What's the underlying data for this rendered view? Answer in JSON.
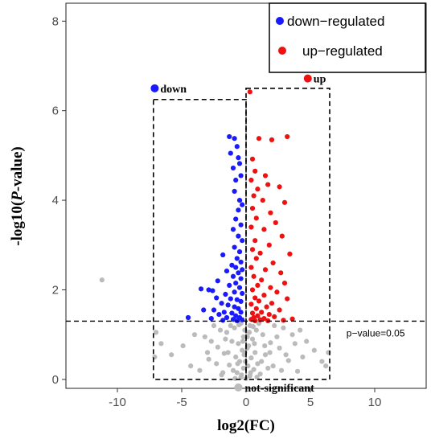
{
  "chart_data": {
    "type": "scatter",
    "title": "",
    "xlabel": "log2(FC)",
    "ylabel_prefix": "-log10(",
    "ylabel_italic": "P",
    "ylabel_suffix": "-value)",
    "xlim": [
      -14,
      14
    ],
    "ylim": [
      -0.2,
      8.4
    ],
    "x_ticks": [
      -10,
      -5,
      0,
      5,
      10
    ],
    "y_ticks": [
      0,
      2,
      4,
      6,
      8
    ],
    "grid": false,
    "legend": {
      "position": "top-right",
      "entries": [
        {
          "label": "down−regulated",
          "color": "#1a1aff"
        },
        {
          "label": "up−regulated",
          "color": "#ee1111"
        }
      ]
    },
    "threshold": {
      "y": 1.3,
      "label": "p−value=0.05"
    },
    "annotations": {
      "down": {
        "label": "down",
        "x": -7.1,
        "y": 6.5,
        "color": "#1a1aff"
      },
      "up": {
        "label": "up",
        "x": 4.8,
        "y": 6.72,
        "color": "#ee1111"
      },
      "not_significant": {
        "label": "not-significant",
        "x": -0.6,
        "y": -0.18,
        "color": "#bbbbbb"
      }
    },
    "boxes": [
      {
        "x0": -7.2,
        "x1": 0,
        "y0": 0,
        "y1": 6.25
      },
      {
        "x0": 0,
        "x1": 6.5,
        "y0": 0,
        "y1": 6.5
      }
    ],
    "series": [
      {
        "name": "down−regulated",
        "color": "#1a1aff",
        "points": [
          [
            -1.3,
            5.42
          ],
          [
            -0.9,
            5.38
          ],
          [
            -1.2,
            5.05
          ],
          [
            -0.7,
            5.2
          ],
          [
            -0.6,
            4.95
          ],
          [
            -1.0,
            4.72
          ],
          [
            -0.5,
            4.82
          ],
          [
            -0.8,
            4.45
          ],
          [
            -0.4,
            4.55
          ],
          [
            -0.9,
            4.2
          ],
          [
            -0.5,
            4.0
          ],
          [
            -0.6,
            3.78
          ],
          [
            -0.3,
            3.9
          ],
          [
            -0.8,
            3.58
          ],
          [
            -0.4,
            3.45
          ],
          [
            -1.0,
            3.35
          ],
          [
            -0.6,
            3.2
          ],
          [
            -0.3,
            3.1
          ],
          [
            -0.9,
            2.95
          ],
          [
            -0.5,
            2.85
          ],
          [
            -1.8,
            2.78
          ],
          [
            -0.7,
            2.7
          ],
          [
            -0.4,
            2.62
          ],
          [
            -1.1,
            2.55
          ],
          [
            -0.8,
            2.5
          ],
          [
            -1.5,
            2.42
          ],
          [
            -0.3,
            2.45
          ],
          [
            -0.6,
            2.38
          ],
          [
            -1.0,
            2.3
          ],
          [
            -0.4,
            2.25
          ],
          [
            -2.2,
            2.2
          ],
          [
            -0.8,
            2.15
          ],
          [
            -1.3,
            2.1
          ],
          [
            -3.5,
            2.02
          ],
          [
            -2.9,
            2.0
          ],
          [
            -2.6,
            1.98
          ],
          [
            -0.5,
            2.05
          ],
          [
            -0.9,
            1.95
          ],
          [
            -1.6,
            1.9
          ],
          [
            -0.3,
            1.92
          ],
          [
            -2.3,
            1.82
          ],
          [
            -1.2,
            1.8
          ],
          [
            -0.7,
            1.78
          ],
          [
            -0.4,
            1.74
          ],
          [
            -1.9,
            1.7
          ],
          [
            -1.4,
            1.66
          ],
          [
            -0.9,
            1.62
          ],
          [
            -3.3,
            1.55
          ],
          [
            -2.5,
            1.55
          ],
          [
            -0.6,
            1.58
          ],
          [
            -1.7,
            1.5
          ],
          [
            -1.1,
            1.48
          ],
          [
            -0.4,
            1.5
          ],
          [
            -2.1,
            1.45
          ],
          [
            -0.8,
            1.42
          ],
          [
            -4.5,
            1.38
          ],
          [
            -1.5,
            1.38
          ],
          [
            -0.5,
            1.38
          ],
          [
            -2.7,
            1.36
          ],
          [
            -1.0,
            1.34
          ],
          [
            -0.3,
            1.33
          ],
          [
            -1.8,
            1.32
          ],
          [
            -0.7,
            1.31
          ]
        ]
      },
      {
        "name": "up−regulated",
        "color": "#ee1111",
        "points": [
          [
            0.3,
            6.42
          ],
          [
            1.0,
            5.38
          ],
          [
            2.0,
            5.35
          ],
          [
            3.2,
            5.42
          ],
          [
            0.5,
            4.92
          ],
          [
            0.7,
            4.65
          ],
          [
            1.5,
            4.55
          ],
          [
            0.4,
            4.45
          ],
          [
            1.7,
            4.35
          ],
          [
            0.9,
            4.25
          ],
          [
            2.6,
            4.3
          ],
          [
            0.6,
            4.1
          ],
          [
            1.3,
            4.0
          ],
          [
            3.0,
            3.95
          ],
          [
            0.5,
            3.82
          ],
          [
            1.9,
            3.72
          ],
          [
            0.8,
            3.6
          ],
          [
            2.3,
            3.5
          ],
          [
            0.4,
            3.4
          ],
          [
            1.4,
            3.35
          ],
          [
            2.8,
            3.2
          ],
          [
            0.7,
            3.1
          ],
          [
            1.8,
            3.0
          ],
          [
            0.5,
            2.9
          ],
          [
            1.1,
            2.82
          ],
          [
            3.4,
            2.8
          ],
          [
            0.8,
            2.7
          ],
          [
            2.1,
            2.6
          ],
          [
            0.4,
            2.5
          ],
          [
            1.5,
            2.45
          ],
          [
            2.7,
            2.38
          ],
          [
            0.6,
            2.3
          ],
          [
            1.2,
            2.22
          ],
          [
            3.0,
            2.15
          ],
          [
            0.9,
            2.1
          ],
          [
            1.9,
            2.05
          ],
          [
            0.5,
            2.0
          ],
          [
            2.4,
            1.95
          ],
          [
            1.4,
            1.88
          ],
          [
            0.7,
            1.82
          ],
          [
            3.2,
            1.8
          ],
          [
            1.0,
            1.75
          ],
          [
            2.0,
            1.7
          ],
          [
            0.4,
            1.68
          ],
          [
            1.6,
            1.62
          ],
          [
            0.8,
            1.58
          ],
          [
            2.6,
            1.55
          ],
          [
            1.2,
            1.5
          ],
          [
            0.5,
            1.48
          ],
          [
            1.8,
            1.45
          ],
          [
            0.9,
            1.42
          ],
          [
            2.2,
            1.4
          ],
          [
            0.6,
            1.38
          ],
          [
            1.4,
            1.36
          ],
          [
            3.6,
            1.35
          ],
          [
            0.4,
            1.34
          ],
          [
            1.1,
            1.33
          ],
          [
            2.9,
            1.32
          ],
          [
            0.7,
            1.31
          ],
          [
            1.7,
            1.31
          ]
        ]
      },
      {
        "name": "not-significant",
        "color": "#bbbbbb",
        "points": [
          [
            -0.4,
            1.25
          ],
          [
            0.3,
            1.2
          ],
          [
            -0.9,
            1.15
          ],
          [
            0.8,
            1.1
          ],
          [
            -1.5,
            1.05
          ],
          [
            1.3,
            1.0
          ],
          [
            -0.2,
            0.95
          ],
          [
            0.5,
            0.9
          ],
          [
            -1.1,
            0.85
          ],
          [
            1.9,
            0.82
          ],
          [
            -0.6,
            0.8
          ],
          [
            0.2,
            0.75
          ],
          [
            -2.2,
            0.72
          ],
          [
            2.6,
            0.7
          ],
          [
            -0.3,
            0.65
          ],
          [
            0.7,
            0.6
          ],
          [
            -1.7,
            0.58
          ],
          [
            1.5,
            0.55
          ],
          [
            -0.8,
            0.5
          ],
          [
            0.4,
            0.48
          ],
          [
            -2.9,
            0.45
          ],
          [
            3.3,
            0.42
          ],
          [
            -0.5,
            0.4
          ],
          [
            0.9,
            0.35
          ],
          [
            -1.3,
            0.32
          ],
          [
            2.1,
            0.3
          ],
          [
            -0.2,
            0.25
          ],
          [
            0.6,
            0.22
          ],
          [
            -3.6,
            0.2
          ],
          [
            4.0,
            0.18
          ],
          [
            -0.7,
            0.15
          ],
          [
            1.1,
            0.12
          ],
          [
            -1.9,
            0.1
          ],
          [
            0.3,
            0.08
          ],
          [
            -0.4,
            0.05
          ],
          [
            -7.0,
            1.05
          ],
          [
            -6.6,
            0.8
          ],
          [
            -7.1,
            0.5
          ],
          [
            -5.8,
            0.55
          ],
          [
            -4.9,
            0.75
          ],
          [
            -4.3,
            0.3
          ],
          [
            4.7,
            0.85
          ],
          [
            5.3,
            0.65
          ],
          [
            5.9,
            0.4
          ],
          [
            6.4,
            0.6
          ],
          [
            6.2,
            0.3
          ],
          [
            3.8,
            0.8
          ],
          [
            4.4,
            0.5
          ],
          [
            -11.2,
            2.22
          ],
          [
            -2.5,
            1.2
          ],
          [
            2.9,
            1.15
          ],
          [
            -3.2,
            0.95
          ],
          [
            3.6,
            1.0
          ],
          [
            -0.1,
            1.1
          ],
          [
            0.1,
            0.7
          ],
          [
            -0.05,
            0.4
          ],
          [
            0.0,
            0.02
          ],
          [
            -0.15,
            0.55
          ],
          [
            0.15,
            0.3
          ],
          [
            -0.25,
            0.85
          ],
          [
            0.25,
            1.05
          ],
          [
            -1.0,
            0.2
          ],
          [
            1.2,
            0.4
          ],
          [
            -1.6,
            0.9
          ],
          [
            1.7,
            0.25
          ],
          [
            -2.3,
            0.35
          ],
          [
            2.4,
            0.95
          ],
          [
            -0.55,
            1.22
          ],
          [
            0.55,
            1.18
          ],
          [
            -0.85,
            0.02
          ],
          [
            0.85,
            0.05
          ],
          [
            -1.2,
            1.2
          ],
          [
            1.0,
            1.25
          ],
          [
            -2.0,
            1.1
          ],
          [
            2.2,
            1.2
          ],
          [
            -3.0,
            0.6
          ],
          [
            3.1,
            0.55
          ],
          [
            -4.0,
            1.0
          ],
          [
            4.2,
            1.1
          ],
          [
            -0.35,
            0.1
          ],
          [
            0.35,
            0.15
          ],
          [
            -0.1,
            0.6
          ],
          [
            0.1,
            0.95
          ],
          [
            -0.65,
            0.35
          ],
          [
            0.65,
            0.8
          ],
          [
            -1.4,
            0.6
          ],
          [
            1.45,
            0.75
          ],
          [
            -1.8,
            0.15
          ],
          [
            1.85,
            0.6
          ],
          [
            -2.7,
            0.85
          ],
          [
            2.75,
            0.2
          ]
        ]
      }
    ]
  }
}
